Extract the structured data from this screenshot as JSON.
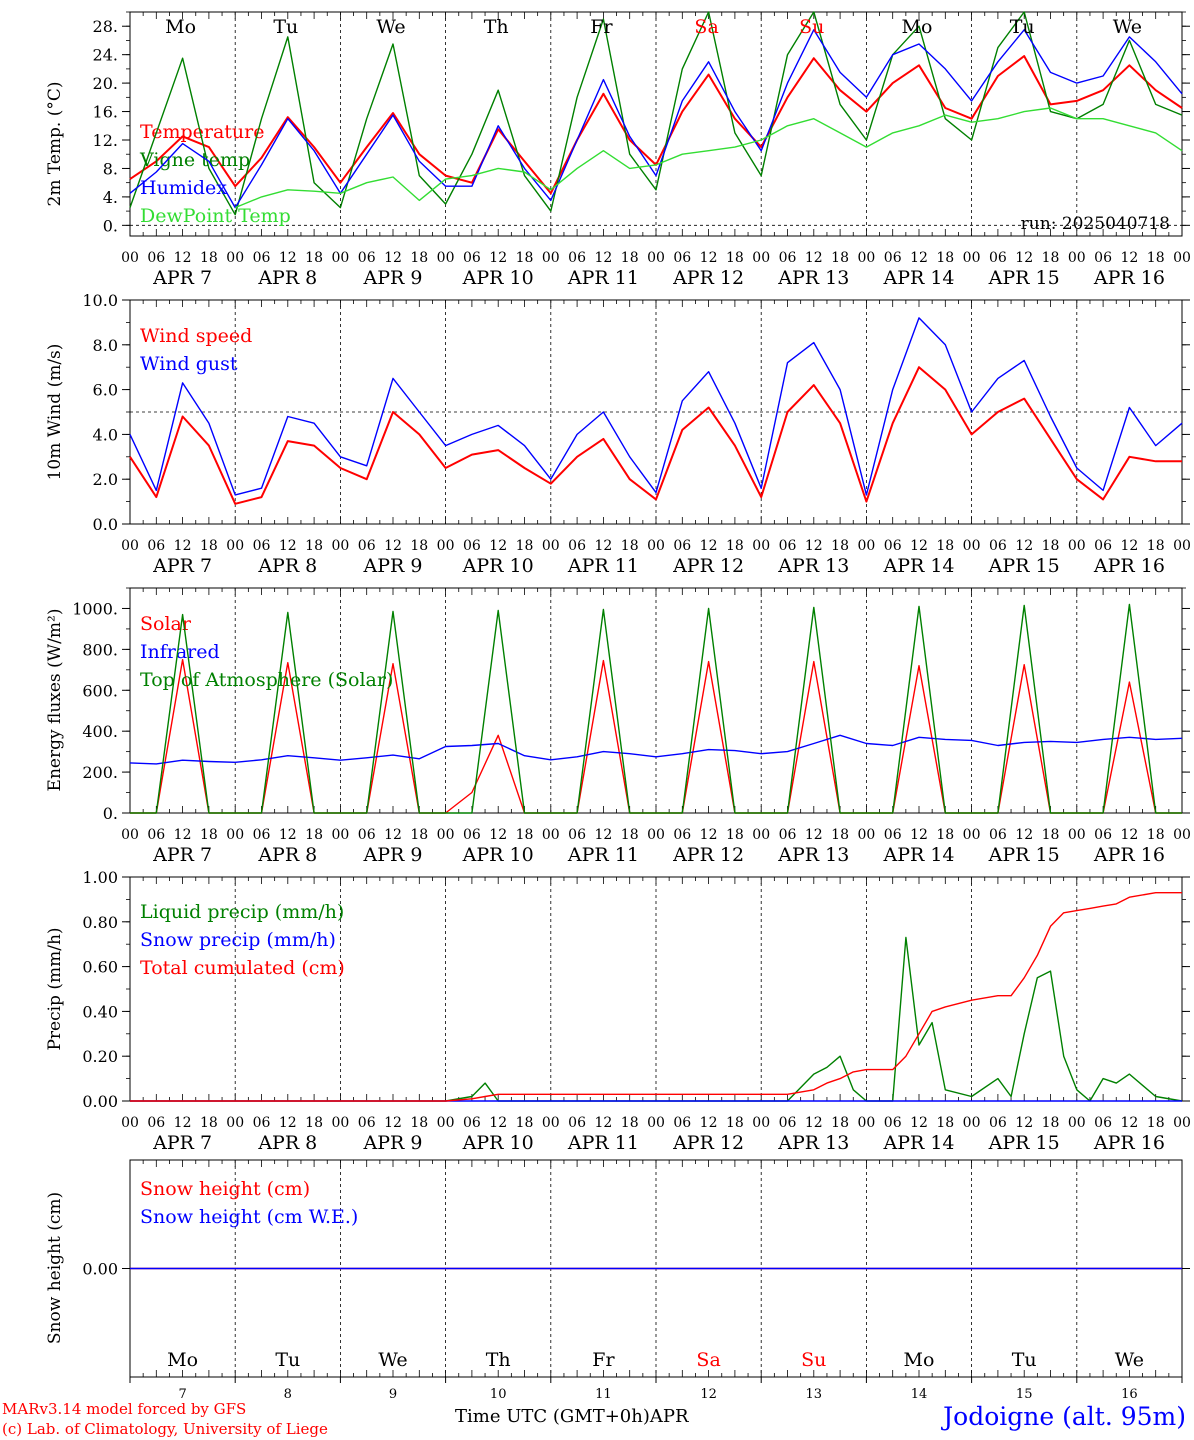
{
  "colors": {
    "red": "#ff0000",
    "green": "#008000",
    "blue": "#0000ff",
    "light_green": "#33dd33",
    "black": "#000000"
  },
  "time_axis": {
    "hour_ticks": [
      "00",
      "06",
      "12",
      "18"
    ],
    "last_tick": "00",
    "date_labels": [
      "APR  7",
      "APR  8",
      "APR  9",
      "APR 10",
      "APR 11",
      "APR 12",
      "APR 13",
      "APR 14",
      "APR 15",
      "APR 16"
    ],
    "days": [
      {
        "label": "Mo",
        "weekend": false
      },
      {
        "label": "Tu",
        "weekend": false
      },
      {
        "label": "We",
        "weekend": false
      },
      {
        "label": "Th",
        "weekend": false
      },
      {
        "label": "Fr",
        "weekend": false
      },
      {
        "label": "Sa",
        "weekend": true
      },
      {
        "label": "Su",
        "weekend": true
      },
      {
        "label": "Mo",
        "weekend": false
      },
      {
        "label": "Tu",
        "weekend": false
      },
      {
        "label": "We",
        "weekend": false
      }
    ],
    "day_numbers": [
      "7",
      "8",
      "9",
      "10",
      "11",
      "12",
      "13",
      "14",
      "15",
      "16"
    ]
  },
  "footer": {
    "credit_line1": "MARv3.14 model forced by GFS",
    "credit_line2": "(c) Lab. of Climatology, University of Liege",
    "axis_label": "Time UTC (GMT+0h)",
    "month": "APR",
    "station": "Jodoigne (alt. 95m)"
  },
  "chart_data": [
    {
      "type": "line",
      "ylabel": "2m Temp. (°C)",
      "ylim": [
        -1.5,
        30
      ],
      "yticks": [
        "0.",
        "4.",
        "8.",
        "12.",
        "16.",
        "20.",
        "24.",
        "28."
      ],
      "ytick_values": [
        0,
        4,
        8,
        12,
        16,
        20,
        24,
        28
      ],
      "reference_line": 0,
      "run": "run: 2025040718",
      "x_hours_from_apr7_00": [
        0,
        6,
        12,
        18,
        24,
        30,
        36,
        42,
        48,
        54,
        60,
        66,
        72,
        78,
        84,
        90,
        96,
        102,
        108,
        114,
        120,
        126,
        132,
        138,
        144,
        150,
        156,
        162,
        168,
        174,
        180,
        186,
        192,
        198,
        204,
        210,
        216,
        222,
        228,
        234,
        240
      ],
      "series": [
        {
          "name": "Temperature",
          "color": "red",
          "values": [
            6.5,
            9,
            12.5,
            11,
            5.5,
            9.5,
            15.2,
            11,
            6,
            11,
            15.8,
            10,
            7,
            6,
            13.5,
            9,
            4.5,
            12,
            18.5,
            12,
            8.5,
            16,
            21.2,
            15,
            11,
            18,
            23.5,
            19,
            16,
            20,
            22.5,
            16.5,
            15,
            21,
            23.8,
            17,
            17.5,
            19,
            22.5,
            19,
            16.5
          ]
        },
        {
          "name": "Vigne temp",
          "color": "green",
          "values": [
            2.5,
            13,
            23.5,
            8,
            1.5,
            15,
            26.5,
            6,
            2.5,
            15,
            25.5,
            7,
            3,
            10,
            19,
            7,
            2,
            18,
            29,
            10,
            5,
            22,
            31,
            13,
            7,
            24,
            31,
            17,
            12,
            24,
            28,
            15,
            12,
            25,
            30,
            16,
            15,
            17,
            26,
            17,
            15.5
          ]
        },
        {
          "name": "Humidex",
          "color": "blue",
          "values": [
            4.5,
            7.5,
            11.5,
            9,
            2.5,
            8.5,
            15,
            10.5,
            4.5,
            10,
            15.5,
            9,
            5.5,
            5.5,
            14,
            8,
            3.5,
            12,
            20.5,
            12.5,
            7,
            17.5,
            23,
            16,
            10.5,
            20,
            27.5,
            21.5,
            18,
            24,
            25.5,
            22,
            17.5,
            23,
            27.5,
            21.5,
            20,
            21,
            26.5,
            23,
            18.5
          ]
        },
        {
          "name": "DewPoint Temp",
          "color": "light_green",
          "values": [
            null,
            null,
            null,
            null,
            2.5,
            4,
            5,
            4.8,
            4.5,
            6,
            6.8,
            3.5,
            6.5,
            7,
            8,
            7.5,
            5,
            8,
            10.5,
            8,
            8.5,
            10,
            10.5,
            11,
            12,
            14,
            15,
            13,
            11,
            13,
            14,
            15.5,
            14.5,
            15,
            16,
            16.5,
            15,
            15,
            14,
            13,
            10.5
          ]
        }
      ]
    },
    {
      "type": "line",
      "ylabel": "10m Wind (m/s)",
      "ylim": [
        0,
        10
      ],
      "yticks": [
        "0.0",
        "2.0",
        "4.0",
        "6.0",
        "8.0",
        "10.0"
      ],
      "ytick_values": [
        0,
        2,
        4,
        6,
        8,
        10
      ],
      "reference_line": 5,
      "x_hours_from_apr7_00": [
        0,
        6,
        12,
        18,
        24,
        30,
        36,
        42,
        48,
        54,
        60,
        66,
        72,
        78,
        84,
        90,
        96,
        102,
        108,
        114,
        120,
        126,
        132,
        138,
        144,
        150,
        156,
        162,
        168,
        174,
        180,
        186,
        192,
        198,
        204,
        210,
        216,
        222,
        228,
        234,
        240
      ],
      "series": [
        {
          "name": "Wind speed",
          "color": "red",
          "values": [
            3,
            1.2,
            4.8,
            3.5,
            0.9,
            1.2,
            3.7,
            3.5,
            2.5,
            2,
            5,
            4,
            2.5,
            3.1,
            3.3,
            2.5,
            1.8,
            3,
            3.8,
            2,
            1.1,
            4.2,
            5.2,
            3.5,
            1.2,
            5,
            6.2,
            4.5,
            1,
            4.5,
            7,
            6,
            4,
            5,
            5.6,
            3.8,
            2,
            1.1,
            3,
            2.8,
            2.8
          ]
        },
        {
          "name": "Wind gust",
          "color": "blue",
          "values": [
            4,
            1.5,
            6.3,
            4.5,
            1.3,
            1.6,
            4.8,
            4.5,
            3,
            2.6,
            6.5,
            5,
            3.5,
            4,
            4.4,
            3.5,
            2,
            4,
            5,
            3,
            1.4,
            5.5,
            6.8,
            4.5,
            1.6,
            7.2,
            8.1,
            6,
            1.3,
            6,
            9.2,
            8,
            5,
            6.5,
            7.3,
            4.8,
            2.5,
            1.5,
            5.2,
            3.5,
            4.5
          ]
        }
      ]
    },
    {
      "type": "line",
      "ylabel": "Energy fluxes (W/m²)",
      "ylim": [
        0,
        1100
      ],
      "yticks": [
        "0.",
        "200.",
        "400.",
        "600.",
        "800.",
        "1000."
      ],
      "ytick_values": [
        0,
        200,
        400,
        600,
        800,
        1000
      ],
      "x_hours_from_apr7_00": [
        0,
        6,
        12,
        18,
        24,
        30,
        36,
        42,
        48,
        54,
        60,
        66,
        72,
        78,
        84,
        90,
        96,
        102,
        108,
        114,
        120,
        126,
        132,
        138,
        144,
        150,
        156,
        162,
        168,
        174,
        180,
        186,
        192,
        198,
        204,
        210,
        216,
        222,
        228,
        234,
        240
      ],
      "series": [
        {
          "name": "Solar",
          "color": "red",
          "values": [
            0,
            0,
            750,
            0,
            0,
            0,
            735,
            0,
            0,
            0,
            730,
            0,
            0,
            100,
            380,
            0,
            0,
            0,
            745,
            0,
            0,
            0,
            740,
            0,
            0,
            0,
            740,
            0,
            0,
            0,
            720,
            0,
            0,
            0,
            725,
            0,
            0,
            0,
            640,
            0,
            0
          ]
        },
        {
          "name": "Infrared",
          "color": "blue",
          "values": [
            245,
            240,
            258,
            252,
            248,
            260,
            280,
            270,
            258,
            270,
            283,
            265,
            325,
            330,
            340,
            280,
            260,
            275,
            300,
            290,
            275,
            290,
            310,
            305,
            290,
            300,
            340,
            380,
            340,
            330,
            370,
            360,
            355,
            330,
            345,
            350,
            345,
            360,
            370,
            360,
            365
          ]
        },
        {
          "name": "Top of Atmosphere (Solar)",
          "color": "green",
          "values": [
            0,
            0,
            970,
            0,
            0,
            0,
            980,
            0,
            0,
            0,
            985,
            0,
            0,
            0,
            990,
            0,
            0,
            0,
            995,
            0,
            0,
            0,
            1000,
            0,
            0,
            0,
            1005,
            0,
            0,
            0,
            1010,
            0,
            0,
            0,
            1015,
            0,
            0,
            0,
            1020,
            0,
            0
          ]
        }
      ]
    },
    {
      "type": "line",
      "ylabel": "Precip (mm/h)",
      "ylim": [
        0,
        1
      ],
      "yticks": [
        "0.00",
        "0.20",
        "0.40",
        "0.60",
        "0.80",
        "1.00"
      ],
      "ytick_values": [
        0,
        0.2,
        0.4,
        0.6,
        0.8,
        1.0
      ],
      "x_hours_from_apr7_00": [
        0,
        72,
        78,
        81,
        84,
        150,
        156,
        159,
        162,
        165,
        168,
        174,
        177,
        180,
        183,
        186,
        192,
        198,
        201,
        204,
        207,
        210,
        213,
        216,
        219,
        222,
        225,
        228,
        234,
        240
      ],
      "series": [
        {
          "name": "Liquid precip (mm/h)",
          "color": "green",
          "values": [
            0,
            0,
            0.02,
            0.08,
            0,
            0,
            0.12,
            0.15,
            0.2,
            0.05,
            0,
            0,
            0.73,
            0.25,
            0.35,
            0.05,
            0.02,
            0.1,
            0.02,
            0.3,
            0.55,
            0.58,
            0.2,
            0.05,
            0,
            0.1,
            0.08,
            0.12,
            0.02,
            0
          ]
        },
        {
          "name": "Snow precip (mm/h)",
          "color": "blue",
          "values": [
            0,
            0,
            0,
            0,
            0,
            0,
            0,
            0,
            0,
            0,
            0,
            0,
            0,
            0,
            0,
            0,
            0,
            0,
            0,
            0,
            0,
            0,
            0,
            0,
            0,
            0,
            0,
            0,
            0,
            0
          ]
        },
        {
          "name": "Total cumulated (cm)",
          "color": "red",
          "values": [
            0,
            0,
            0.01,
            0.02,
            0.03,
            0.03,
            0.05,
            0.08,
            0.1,
            0.13,
            0.14,
            0.14,
            0.2,
            0.3,
            0.4,
            0.42,
            0.45,
            0.47,
            0.47,
            0.55,
            0.65,
            0.78,
            0.84,
            0.85,
            0.86,
            0.87,
            0.88,
            0.91,
            0.93,
            0.93
          ]
        }
      ]
    },
    {
      "type": "line",
      "ylabel": "Snow height (cm)",
      "ylim": [
        -1,
        1
      ],
      "yticks": [
        "0.00"
      ],
      "ytick_values": [
        0
      ],
      "x_hours_from_apr7_00": [
        0,
        240
      ],
      "series": [
        {
          "name": "Snow height (cm)",
          "color": "red",
          "values": [
            0,
            0
          ]
        },
        {
          "name": "Snow height (cm W.E.)",
          "color": "blue",
          "values": [
            0,
            0
          ]
        }
      ]
    }
  ]
}
